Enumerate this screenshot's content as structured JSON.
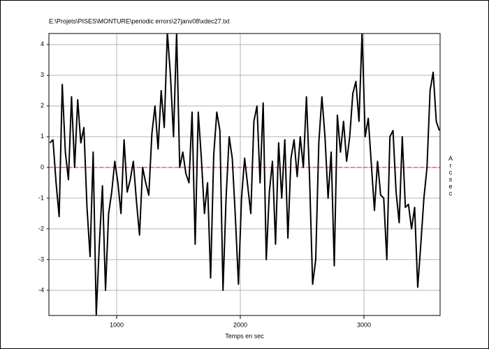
{
  "chart_data": {
    "type": "line",
    "title": "E:\\Projets\\PISES\\MONTURE\\periodic errors\\27janv08\\xdec27.txt",
    "x_label": "Temps en sec",
    "y_label": "Arcsec",
    "x": [
      460,
      485,
      510,
      535,
      560,
      585,
      610,
      635,
      660,
      685,
      710,
      735,
      760,
      785,
      810,
      835,
      860,
      885,
      910,
      935,
      960,
      985,
      1010,
      1035,
      1060,
      1085,
      1110,
      1135,
      1160,
      1185,
      1210,
      1235,
      1260,
      1285,
      1310,
      1335,
      1360,
      1385,
      1410,
      1435,
      1460,
      1485,
      1510,
      1535,
      1560,
      1585,
      1610,
      1635,
      1660,
      1685,
      1710,
      1735,
      1760,
      1785,
      1810,
      1835,
      1860,
      1885,
      1910,
      1935,
      1960,
      1985,
      2010,
      2035,
      2060,
      2085,
      2110,
      2135,
      2160,
      2185,
      2210,
      2235,
      2260,
      2285,
      2310,
      2335,
      2360,
      2385,
      2410,
      2435,
      2460,
      2485,
      2510,
      2535,
      2560,
      2585,
      2610,
      2635,
      2660,
      2685,
      2710,
      2735,
      2760,
      2785,
      2810,
      2835,
      2860,
      2885,
      2910,
      2935,
      2960,
      2985,
      3010,
      3035,
      3060,
      3085,
      3110,
      3135,
      3160,
      3185,
      3210,
      3235,
      3260,
      3285,
      3310,
      3335,
      3360,
      3385,
      3410,
      3435,
      3460,
      3485,
      3510,
      3535,
      3560,
      3585,
      3610
    ],
    "series": [
      {
        "name": "xdec27",
        "color": "#000000",
        "values": [
          0.8,
          0.9,
          -0.5,
          -1.6,
          2.7,
          0.5,
          -0.4,
          2.3,
          0.0,
          2.2,
          0.8,
          1.3,
          -1.3,
          -2.9,
          0.5,
          -4.8,
          -2.5,
          -0.6,
          -4.0,
          -1.5,
          -0.8,
          0.2,
          -0.5,
          -1.5,
          0.9,
          -0.8,
          -0.4,
          0.2,
          -1.1,
          -2.2,
          0.0,
          -0.5,
          -0.9,
          1.1,
          2.0,
          0.6,
          2.5,
          1.3,
          4.4,
          3.0,
          1.0,
          4.4,
          0.0,
          0.5,
          -0.2,
          -0.5,
          1.8,
          -2.5,
          1.8,
          0.3,
          -1.5,
          -0.5,
          -3.6,
          0.4,
          1.8,
          1.2,
          -4.0,
          -1.0,
          1.0,
          0.3,
          -1.6,
          -3.8,
          -1.0,
          0.3,
          -0.6,
          -1.5,
          1.5,
          2.0,
          -0.5,
          2.1,
          -3.0,
          -0.8,
          0.2,
          -2.5,
          0.8,
          -1.0,
          0.9,
          -2.3,
          0.3,
          0.9,
          -0.3,
          1.0,
          0.0,
          2.3,
          -0.3,
          -3.8,
          -3.0,
          0.8,
          2.3,
          1.0,
          -1.0,
          0.5,
          -3.2,
          1.7,
          0.5,
          1.5,
          0.2,
          1.0,
          2.4,
          2.8,
          1.5,
          4.4,
          1.0,
          1.6,
          0.1,
          -1.4,
          0.2,
          -0.9,
          -1.0,
          -3.0,
          1.0,
          1.2,
          -0.8,
          -1.8,
          1.0,
          -1.3,
          -1.2,
          -2.0,
          -1.3,
          -3.9,
          -2.5,
          -1.0,
          0.0,
          2.5,
          3.1,
          1.5,
          1.2
        ]
      }
    ],
    "reference_line": {
      "value": 0,
      "color": "#cc3333"
    },
    "xlim": [
      452,
      3616
    ],
    "xticks": [
      1000,
      2000,
      3000
    ],
    "ylim": [
      -4.82,
      4.36
    ],
    "yticks": [
      -4,
      -3,
      -2,
      -1,
      0,
      1,
      2,
      3,
      4
    ],
    "grid": true
  }
}
